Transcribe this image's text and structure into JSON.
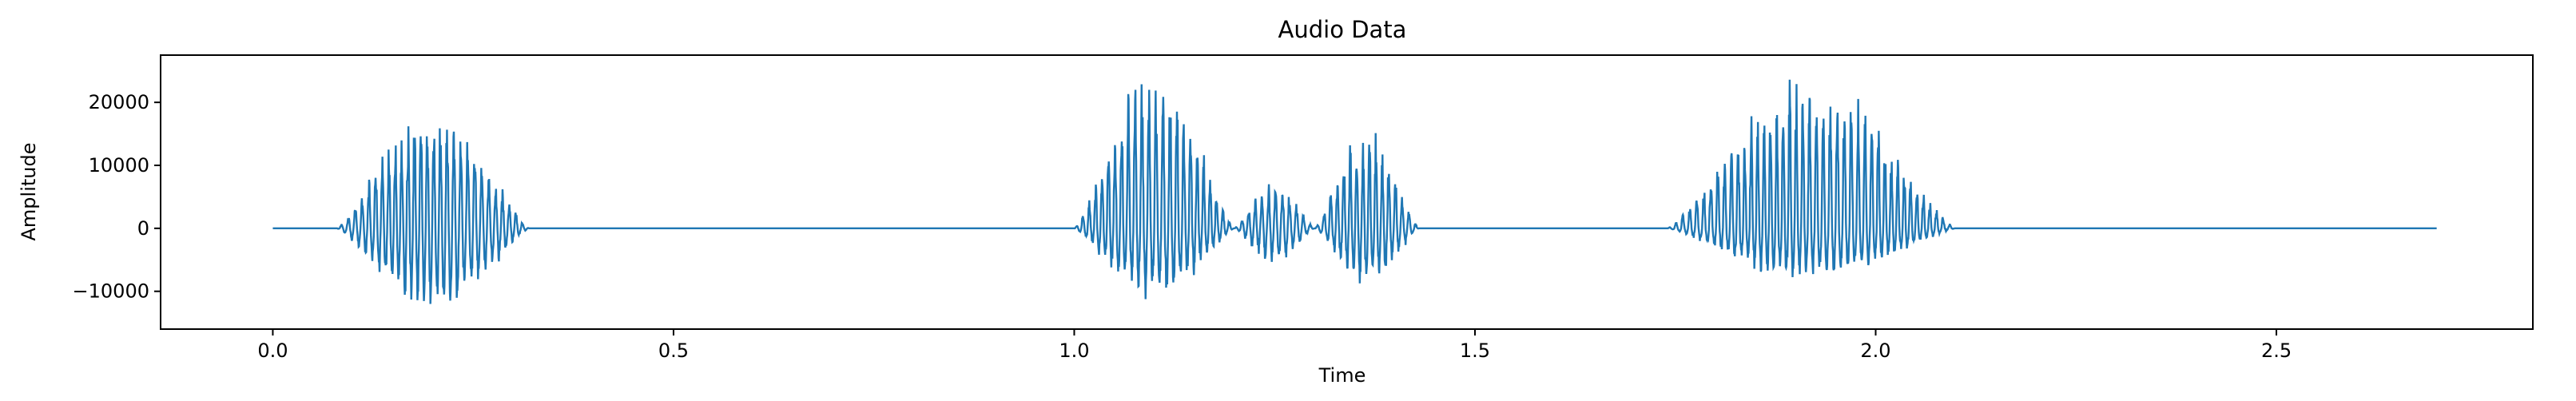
{
  "chart_data": {
    "type": "line",
    "title": "Audio Data",
    "xlabel": "Time",
    "ylabel": "Amplitude",
    "xlim": [
      -0.14,
      2.82
    ],
    "ylim": [
      -16000,
      27500
    ],
    "x_ticks": [
      0.0,
      0.5,
      1.0,
      1.5,
      2.0,
      2.5
    ],
    "x_tick_labels": [
      "0.0",
      "0.5",
      "1.0",
      "1.5",
      "2.0",
      "2.5"
    ],
    "y_ticks": [
      -10000,
      0,
      10000,
      20000
    ],
    "y_tick_labels": [
      "−10000",
      "0",
      "10000",
      "20000"
    ],
    "grid": false,
    "series": [
      {
        "color": "#1f77b4",
        "x_range": [
          0.0,
          2.7
        ],
        "baseline": 0,
        "segments": [
          {
            "start": 0.08,
            "end": 0.32,
            "peak_pos": 19000,
            "peak_neg": -14000
          },
          {
            "start": 1.0,
            "end": 1.2,
            "peak_pos": 25500,
            "peak_neg": -11500
          },
          {
            "start": 1.2,
            "end": 1.3,
            "peak_pos": 7500,
            "peak_neg": -5500
          },
          {
            "start": 1.3,
            "end": 1.43,
            "peak_pos": 16000,
            "peak_neg": -9000
          },
          {
            "start": 1.74,
            "end": 2.1,
            "peak_pos": 24500,
            "peak_neg": -8500
          }
        ]
      }
    ]
  }
}
